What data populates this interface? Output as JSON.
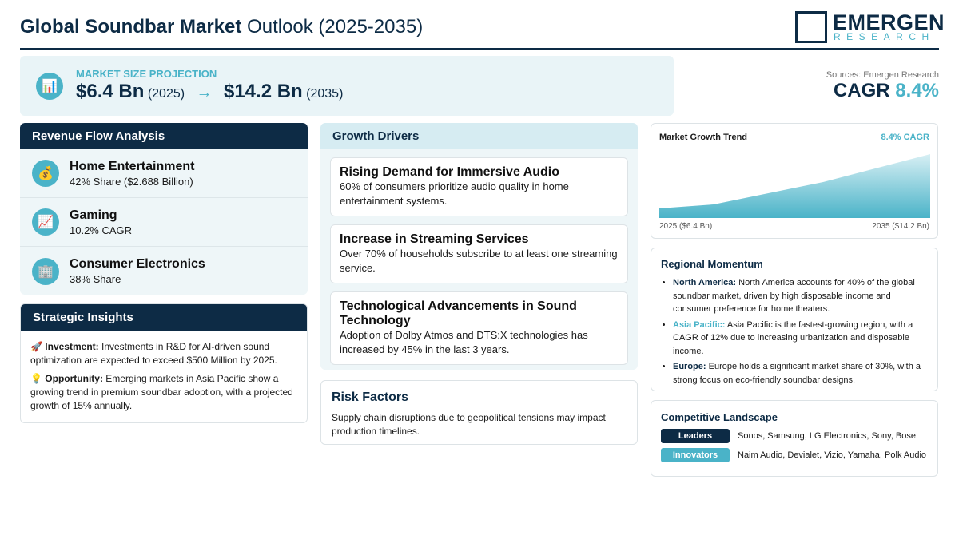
{
  "header": {
    "title_bold": "Global Soundbar Market",
    "title_rest": "Outlook (2025-2035)",
    "logo_name": "EMERGEN",
    "logo_sub": "RESEARCH"
  },
  "projection": {
    "icon": "📊",
    "label": "MARKET SIZE PROJECTION",
    "start_value": "$6.4 Bn",
    "start_year": "(2025)",
    "arrow": "→",
    "end_value": "$14.2 Bn",
    "end_year": "(2035)"
  },
  "summary": {
    "sources": "Sources: Emergen Research",
    "cagr_label": "CAGR",
    "cagr_value": "8.4%"
  },
  "revenue": {
    "title": "Revenue Flow Analysis",
    "items": [
      {
        "icon": "💰",
        "name": "Home Entertainment",
        "detail": "42% Share ($2.688 Billion)"
      },
      {
        "icon": "📈",
        "name": "Gaming",
        "detail": "10.2% CAGR"
      },
      {
        "icon": "🏢",
        "name": "Consumer Electronics",
        "detail": "38% Share"
      }
    ]
  },
  "insights": {
    "title": "Strategic Insights",
    "items": [
      {
        "icon": "🚀",
        "label": "Investment:",
        "text": "Investments in R&D for AI-driven sound optimization are expected to exceed $500 Million by 2025."
      },
      {
        "icon": "💡",
        "label": "Opportunity:",
        "text": "Emerging markets in Asia Pacific show a growing trend in premium soundbar adoption, with a projected growth of 15% annually."
      }
    ]
  },
  "drivers": {
    "title": "Growth Drivers",
    "items": [
      {
        "title": "Rising Demand for Immersive Audio",
        "text": "60% of consumers prioritize audio quality in home entertainment systems."
      },
      {
        "title": "Increase in Streaming Services",
        "text": "Over 70% of households subscribe to at least one streaming service."
      },
      {
        "title": "Technological Advancements in Sound Technology",
        "text": "Adoption of Dolby Atmos and DTS:X technologies has increased by 45% in the last 3 years."
      }
    ]
  },
  "risk": {
    "title": "Risk Factors",
    "text": "Supply chain disruptions due to geopolitical tensions may impact production timelines."
  },
  "trend": {
    "title": "Market Growth Trend",
    "badge": "8.4% CAGR",
    "start_label": "2025 ($6.4 Bn)",
    "end_label": "2035 ($14.2 Bn)"
  },
  "regional": {
    "title": "Regional Momentum",
    "items": [
      {
        "region": "North America:",
        "text": "North America accounts for 40% of the global soundbar market, driven by high disposable income and consumer preference for home theaters."
      },
      {
        "region": "Asia Pacific:",
        "text": "Asia Pacific is the fastest-growing region, with a CAGR of 12% due to increasing urbanization and disposable income."
      },
      {
        "region": "Europe:",
        "text": "Europe holds a significant market share of 30%, with a strong focus on eco-friendly soundbar designs."
      }
    ]
  },
  "competitive": {
    "title": "Competitive Landscape",
    "rows": [
      {
        "tag": "Leaders",
        "companies": "Sonos, Samsung, LG Electronics, Sony, Bose"
      },
      {
        "tag": "Innovators",
        "companies": "Naim Audio, Devialet, Vizio, Yamaha, Polk Audio"
      }
    ]
  }
}
